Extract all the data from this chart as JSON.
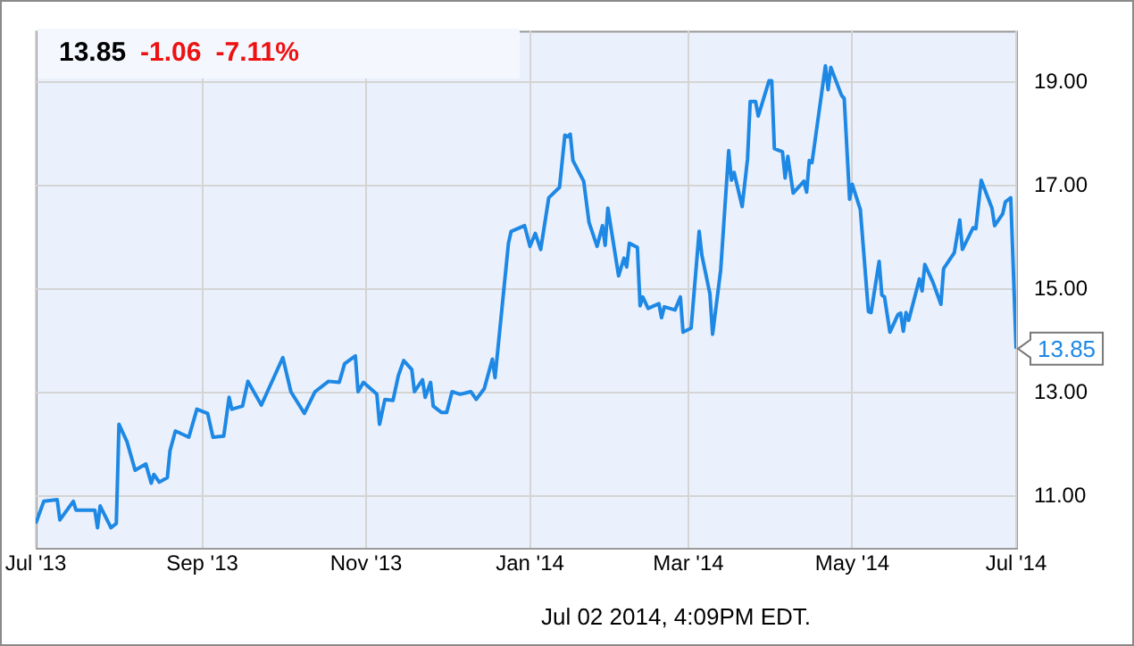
{
  "chart_data": {
    "type": "line",
    "x": [
      "2013-07-01",
      "2013-07-04",
      "2013-07-09",
      "2013-07-10",
      "2013-07-15",
      "2013-07-16",
      "2013-07-23",
      "2013-07-24",
      "2013-07-25",
      "2013-07-29",
      "2013-07-31",
      "2013-08-01",
      "2013-08-04",
      "2013-08-07",
      "2013-08-11",
      "2013-08-13",
      "2013-08-14",
      "2013-08-16",
      "2013-08-19",
      "2013-08-20",
      "2013-08-22",
      "2013-08-27",
      "2013-08-30",
      "2013-09-03",
      "2013-09-05",
      "2013-09-09",
      "2013-09-11",
      "2013-09-12",
      "2013-09-16",
      "2013-09-18",
      "2013-09-23",
      "2013-10-01",
      "2013-10-04",
      "2013-10-09",
      "2013-10-13",
      "2013-10-18",
      "2013-10-22",
      "2013-10-24",
      "2013-10-28",
      "2013-10-29",
      "2013-10-31",
      "2013-11-05",
      "2013-11-06",
      "2013-11-08",
      "2013-11-11",
      "2013-11-13",
      "2013-11-15",
      "2013-11-18",
      "2013-11-19",
      "2013-11-22",
      "2013-11-23",
      "2013-11-25",
      "2013-11-26",
      "2013-11-29",
      "2013-12-01",
      "2013-12-03",
      "2013-12-06",
      "2013-12-10",
      "2013-12-12",
      "2013-12-15",
      "2013-12-18",
      "2013-12-19",
      "2013-12-24",
      "2013-12-25",
      "2013-12-30",
      "2014-01-01",
      "2014-01-03",
      "2014-01-05",
      "2014-01-08",
      "2014-01-12",
      "2014-01-14",
      "2014-01-15",
      "2014-01-16",
      "2014-01-17",
      "2014-01-21",
      "2014-01-23",
      "2014-01-26",
      "2014-01-28",
      "2014-01-29",
      "2014-01-30",
      "2014-02-03",
      "2014-02-05",
      "2014-02-06",
      "2014-02-07",
      "2014-02-10",
      "2014-02-11",
      "2014-02-12",
      "2014-02-14",
      "2014-02-18",
      "2014-02-19",
      "2014-02-20",
      "2014-02-24",
      "2014-02-26",
      "2014-02-27",
      "2014-03-02",
      "2014-03-05",
      "2014-03-06",
      "2014-03-09",
      "2014-03-10",
      "2014-03-13",
      "2014-03-16",
      "2014-03-17",
      "2014-03-18",
      "2014-03-21",
      "2014-03-23",
      "2014-03-24",
      "2014-03-26",
      "2014-03-27",
      "2014-03-31",
      "2014-04-01",
      "2014-04-02",
      "2014-04-05",
      "2014-04-06",
      "2014-04-07",
      "2014-04-09",
      "2014-04-13",
      "2014-04-14",
      "2014-04-15",
      "2014-04-16",
      "2014-04-21",
      "2014-04-22",
      "2014-04-23",
      "2014-04-27",
      "2014-04-28",
      "2014-04-30",
      "2014-05-01",
      "2014-05-04",
      "2014-05-07",
      "2014-05-08",
      "2014-05-11",
      "2014-05-12",
      "2014-05-13",
      "2014-05-15",
      "2014-05-18",
      "2014-05-19",
      "2014-05-20",
      "2014-05-21",
      "2014-05-22",
      "2014-05-26",
      "2014-05-27",
      "2014-05-28",
      "2014-05-31",
      "2014-06-03",
      "2014-06-04",
      "2014-06-08",
      "2014-06-10",
      "2014-06-11",
      "2014-06-15",
      "2014-06-16",
      "2014-06-18",
      "2014-06-22",
      "2014-06-23",
      "2014-06-26",
      "2014-06-27",
      "2014-06-29",
      "2014-07-01"
    ],
    "series": [
      {
        "color": "#1e88e5",
        "values": [
          10.47,
          10.9,
          10.93,
          10.54,
          10.9,
          10.73,
          10.73,
          10.39,
          10.81,
          10.39,
          10.47,
          12.39,
          12.05,
          11.5,
          11.62,
          11.25,
          11.42,
          11.27,
          11.36,
          11.88,
          12.26,
          12.14,
          12.68,
          12.6,
          12.14,
          12.16,
          12.91,
          12.68,
          12.74,
          13.22,
          12.76,
          13.68,
          13.02,
          12.6,
          13.02,
          13.22,
          13.2,
          13.56,
          13.71,
          13.02,
          13.2,
          12.97,
          12.39,
          12.87,
          12.85,
          13.33,
          13.62,
          13.45,
          13.02,
          13.25,
          12.91,
          13.2,
          12.74,
          12.62,
          12.62,
          13.02,
          12.97,
          13.02,
          12.87,
          13.08,
          13.65,
          13.29,
          15.89,
          16.12,
          16.23,
          15.83,
          16.08,
          15.77,
          16.77,
          16.97,
          17.98,
          17.95,
          18.0,
          17.49,
          17.09,
          16.29,
          15.83,
          16.23,
          15.85,
          16.57,
          15.26,
          15.6,
          15.43,
          15.89,
          15.81,
          14.68,
          14.85,
          14.63,
          14.72,
          14.45,
          14.66,
          14.6,
          14.85,
          14.17,
          14.25,
          16.12,
          15.66,
          14.91,
          14.13,
          15.37,
          17.68,
          17.11,
          17.26,
          16.6,
          17.52,
          18.63,
          18.63,
          18.35,
          19.03,
          19.03,
          17.72,
          17.66,
          17.15,
          17.57,
          16.86,
          17.09,
          16.88,
          17.49,
          17.45,
          19.32,
          18.86,
          19.29,
          18.75,
          18.69,
          16.74,
          17.03,
          16.54,
          14.57,
          14.55,
          15.54,
          14.89,
          14.85,
          14.17,
          14.51,
          14.54,
          14.19,
          14.55,
          14.4,
          15.2,
          14.97,
          15.48,
          15.14,
          14.71,
          15.4,
          15.71,
          16.34,
          15.77,
          16.19,
          16.17,
          17.11,
          16.57,
          16.23,
          16.46,
          16.69,
          16.77,
          13.85
        ]
      }
    ],
    "xlim": [
      "2013-07-01",
      "2014-07-01"
    ],
    "xticks": [
      {
        "value": "2013-07-01",
        "label": "Jul '13"
      },
      {
        "value": "2013-09-01",
        "label": "Sep '13"
      },
      {
        "value": "2013-11-01",
        "label": "Nov '13"
      },
      {
        "value": "2014-01-01",
        "label": "Jan '14"
      },
      {
        "value": "2014-03-01",
        "label": "Mar '14"
      },
      {
        "value": "2014-05-01",
        "label": "May '14"
      },
      {
        "value": "2014-07-01",
        "label": "Jul '14"
      }
    ],
    "ylim": [
      10,
      20
    ],
    "yticks": [
      {
        "value": 11,
        "label": "11.00"
      },
      {
        "value": 13,
        "label": "13.00"
      },
      {
        "value": 15,
        "label": "15.00"
      },
      {
        "value": 17,
        "label": "17.00"
      },
      {
        "value": 19,
        "label": "19.00"
      }
    ],
    "grid": true,
    "legend": false,
    "marker": "none",
    "line_style": "solid",
    "annotations": [
      "13.85",
      "-1.06",
      "-7.11%",
      {
        "text": "13.85",
        "x": "2014-07-01",
        "y": 13.85
      },
      "Jul 02 2014, 4:09PM EDT."
    ]
  }
}
